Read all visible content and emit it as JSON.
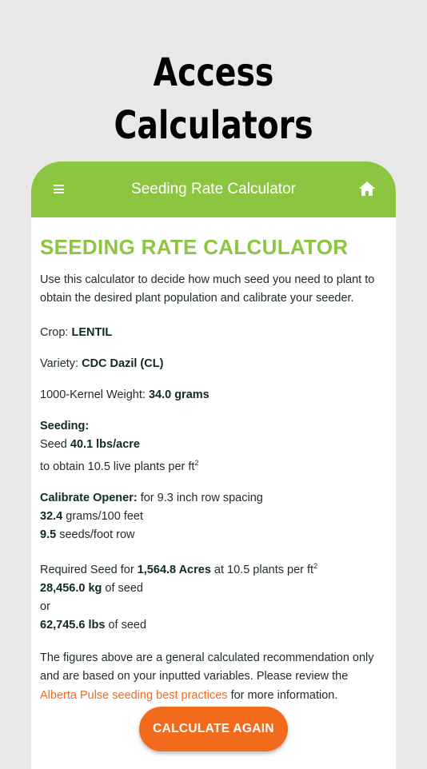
{
  "headline": [
    "Access",
    "Calculators"
  ],
  "appbar": {
    "title": "Seeding Rate Calculator",
    "menu_icon": "hamburger-menu-icon",
    "home_icon": "home-icon"
  },
  "colors": {
    "green": "#8cc540",
    "orange": "#f26b1d"
  },
  "page_title": "SEEDING RATE CALCULATOR",
  "intro": "Use this calculator to decide how much seed you need to plant to obtain the desired plant population and calibrate your seeder.",
  "crop": {
    "label": "Crop: ",
    "value": "LENTIL"
  },
  "variety": {
    "label": "Variety: ",
    "value": "CDC Dazil (CL)"
  },
  "kernel": {
    "label": "1000-Kernel Weight: ",
    "value": "34.0 grams"
  },
  "seeding": {
    "heading": "Seeding:",
    "prefix": "Seed ",
    "rate": "40.1 lbs/acre",
    "obtain": "to obtain 10.5 live plants per ft",
    "sup": "2"
  },
  "calibrate": {
    "heading": "Calibrate Opener:",
    "spacing": " for 9.3 inch row spacing",
    "grams_value": "32.4",
    "grams_unit": " grams/100 feet",
    "seeds_value": "9.5",
    "seeds_unit": " seeds/foot row"
  },
  "required": {
    "prefix": "Required Seed for ",
    "acres": "1,564.8 Acres",
    "plants": " at 10.5 plants per ft",
    "sup": "2",
    "kg_value": "28,456.0 kg",
    "kg_suffix": " of seed",
    "or": "or",
    "lbs_value": "62,745.6 lbs",
    "lbs_suffix": " of seed"
  },
  "note": {
    "before": "The figures above are a general calculated recommendation only and are based on your inputted variables. Please review the ",
    "link": "Alberta Pulse seeding best practices",
    "after": " for more information."
  },
  "button": {
    "label": "CALCULATE AGAIN"
  }
}
